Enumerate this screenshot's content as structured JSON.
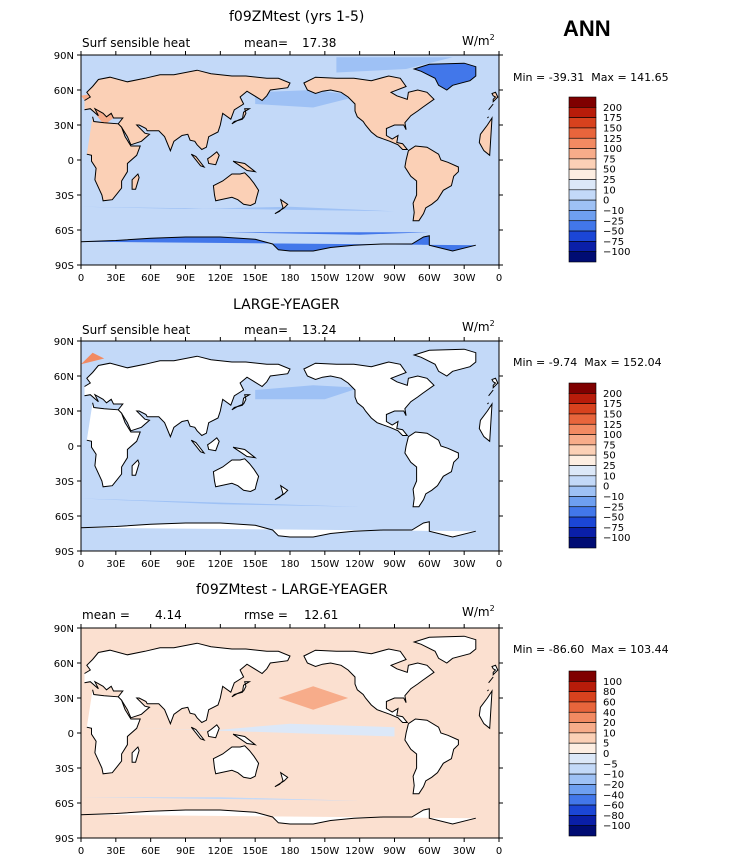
{
  "season": "ANN",
  "panels": [
    {
      "title": "f09ZMtest (yrs 1-5)",
      "left_label": "Surf sensible heat",
      "mean_label": "mean=",
      "mean_value": "17.38",
      "rmse_label": "",
      "rmse_value": "",
      "units": "W/m",
      "units_exp": "2",
      "min_label": "Min =",
      "min_value": "-39.31",
      "max_label": "Max =",
      "max_value": "141.65",
      "background_color": "#c3d9f8",
      "colorbar_labels": [
        "200",
        "175",
        "150",
        "125",
        "100",
        "75",
        "50",
        "25",
        "10",
        "0",
        "−10",
        "−25",
        "−50",
        "−75",
        "−100"
      ],
      "colorbar_colors": [
        "#7f0000",
        "#b81c0a",
        "#d8421e",
        "#e8653c",
        "#f28a62",
        "#f7ac8a",
        "#fbd0b6",
        "#fdeee2",
        "#dce8f8",
        "#c3d9f8",
        "#9ec1f5",
        "#6e9ff0",
        "#4277ea",
        "#1b46d6",
        "#0a1fa8",
        "#000c73"
      ]
    },
    {
      "title": "LARGE-YEAGER",
      "left_label": "Surf sensible heat",
      "mean_label": "mean=",
      "mean_value": "13.24",
      "rmse_label": "",
      "rmse_value": "",
      "units": "W/m",
      "units_exp": "2",
      "min_label": "Min =",
      "min_value": "-9.74",
      "max_label": "Max =",
      "max_value": "152.04",
      "background_color": "#c3d9f8",
      "colorbar_labels": [
        "200",
        "175",
        "150",
        "125",
        "100",
        "75",
        "50",
        "25",
        "10",
        "0",
        "−10",
        "−25",
        "−50",
        "−75",
        "−100"
      ],
      "colorbar_colors": [
        "#7f0000",
        "#b81c0a",
        "#d8421e",
        "#e8653c",
        "#f28a62",
        "#f7ac8a",
        "#fbd0b6",
        "#fdeee2",
        "#dce8f8",
        "#c3d9f8",
        "#9ec1f5",
        "#6e9ff0",
        "#4277ea",
        "#1b46d6",
        "#0a1fa8",
        "#000c73"
      ]
    },
    {
      "title": "f09ZMtest - LARGE-YEAGER",
      "left_label": "",
      "mean_label": "mean =",
      "mean_value": "4.14",
      "rmse_label": "rmse =",
      "rmse_value": "12.61",
      "units": "W/m",
      "units_exp": "2",
      "min_label": "Min =",
      "min_value": "-86.60",
      "max_label": "Max =",
      "max_value": "103.44",
      "background_color": "#fbe0d0",
      "colorbar_labels": [
        "100",
        "80",
        "60",
        "40",
        "20",
        "10",
        "5",
        "0",
        "−5",
        "−10",
        "−20",
        "−40",
        "−60",
        "−80",
        "−100"
      ],
      "colorbar_colors": [
        "#7f0000",
        "#b81c0a",
        "#d8421e",
        "#e8653c",
        "#f28a62",
        "#f7ac8a",
        "#fbd0b6",
        "#fdeee2",
        "#dce8f8",
        "#c3d9f8",
        "#9ec1f5",
        "#6e9ff0",
        "#4277ea",
        "#1b46d6",
        "#0a1fa8",
        "#000c73"
      ]
    }
  ],
  "lat_ticks": [
    "90N",
    "60N",
    "30N",
    "0",
    "30S",
    "60S",
    "90S"
  ],
  "lon_ticks": [
    "0",
    "30E",
    "60E",
    "90E",
    "120E",
    "150E",
    "180",
    "150W",
    "120W",
    "90W",
    "60W",
    "30W",
    "0"
  ]
}
